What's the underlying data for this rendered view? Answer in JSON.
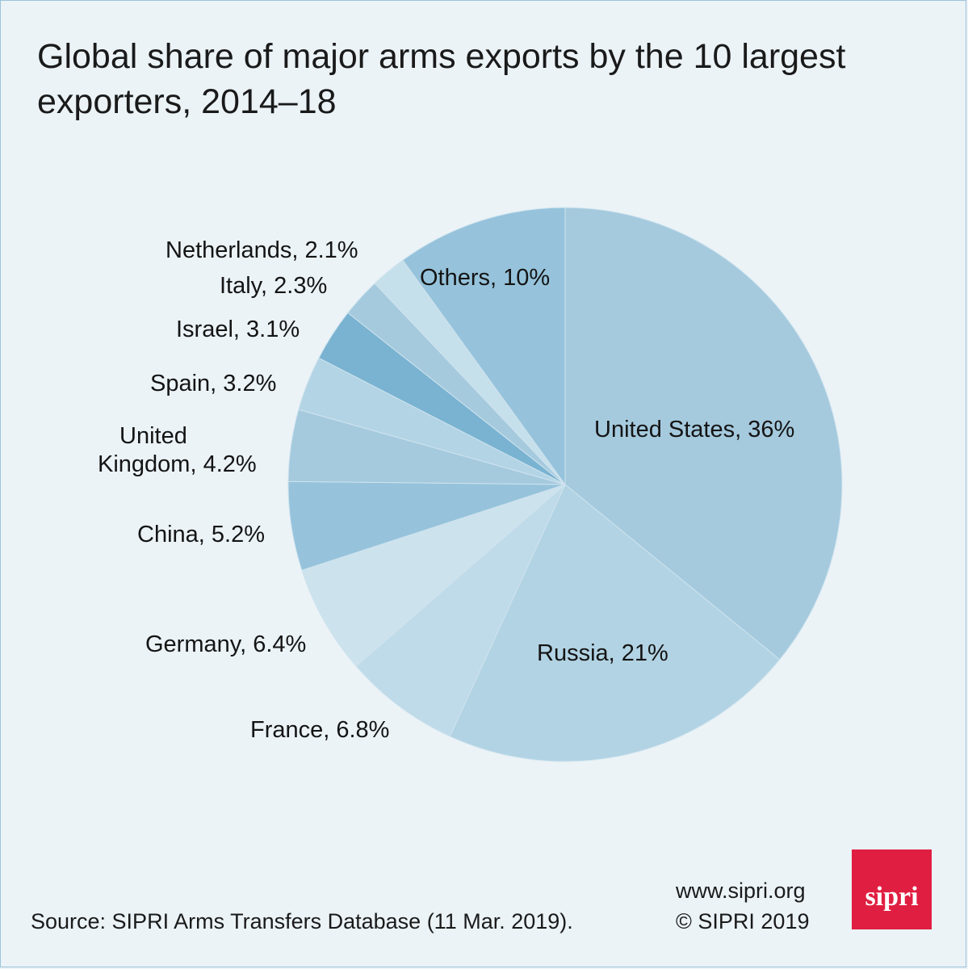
{
  "title": "Global share of major arms exports by the 10 largest exporters, 2014–18",
  "chart_data": {
    "type": "pie",
    "title": "Global share of major arms exports by the 10 largest exporters, 2014–18",
    "slices": [
      {
        "name": "United States",
        "value": 36,
        "label": "United States, 36%",
        "color": "#a5cade"
      },
      {
        "name": "Russia",
        "value": 21,
        "label": "Russia, 21%",
        "color": "#b2d3e3"
      },
      {
        "name": "France",
        "value": 6.8,
        "label": "France, 6.8%",
        "color": "#bfdae8"
      },
      {
        "name": "Germany",
        "value": 6.4,
        "label": "Germany, 6.4%",
        "color": "#cce2ed"
      },
      {
        "name": "China",
        "value": 5.2,
        "label": "China, 5.2%",
        "color": "#96c3db"
      },
      {
        "name": "United Kingdom",
        "value": 4.2,
        "label": "United Kingdom, 4.2%",
        "label_line1": "United",
        "label_line2": "Kingdom, 4.2%",
        "color": "#a5cade"
      },
      {
        "name": "Spain",
        "value": 3.2,
        "label": "Spain, 3.2%",
        "color": "#b3d4e5"
      },
      {
        "name": "Israel",
        "value": 3.1,
        "label": "Israel, 3.1%",
        "color": "#7ab3d1"
      },
      {
        "name": "Italy",
        "value": 2.3,
        "label": "Italy, 2.3%",
        "color": "#a5cade"
      },
      {
        "name": "Netherlands",
        "value": 2.1,
        "label": "Netherlands, 2.1%",
        "color": "#c5dfeb"
      },
      {
        "name": "Others",
        "value": 10,
        "label": "Others, 10%",
        "color": "#96c3db"
      }
    ],
    "start_angle": "12 o'clock",
    "direction": "clockwise"
  },
  "footer": {
    "source": "Source: SIPRI Arms Transfers Database (11 Mar. 2019).",
    "website": "www.sipri.org",
    "copyright": "© SIPRI 2019",
    "logo_text": "sipri",
    "logo_color": "#e01e41"
  }
}
